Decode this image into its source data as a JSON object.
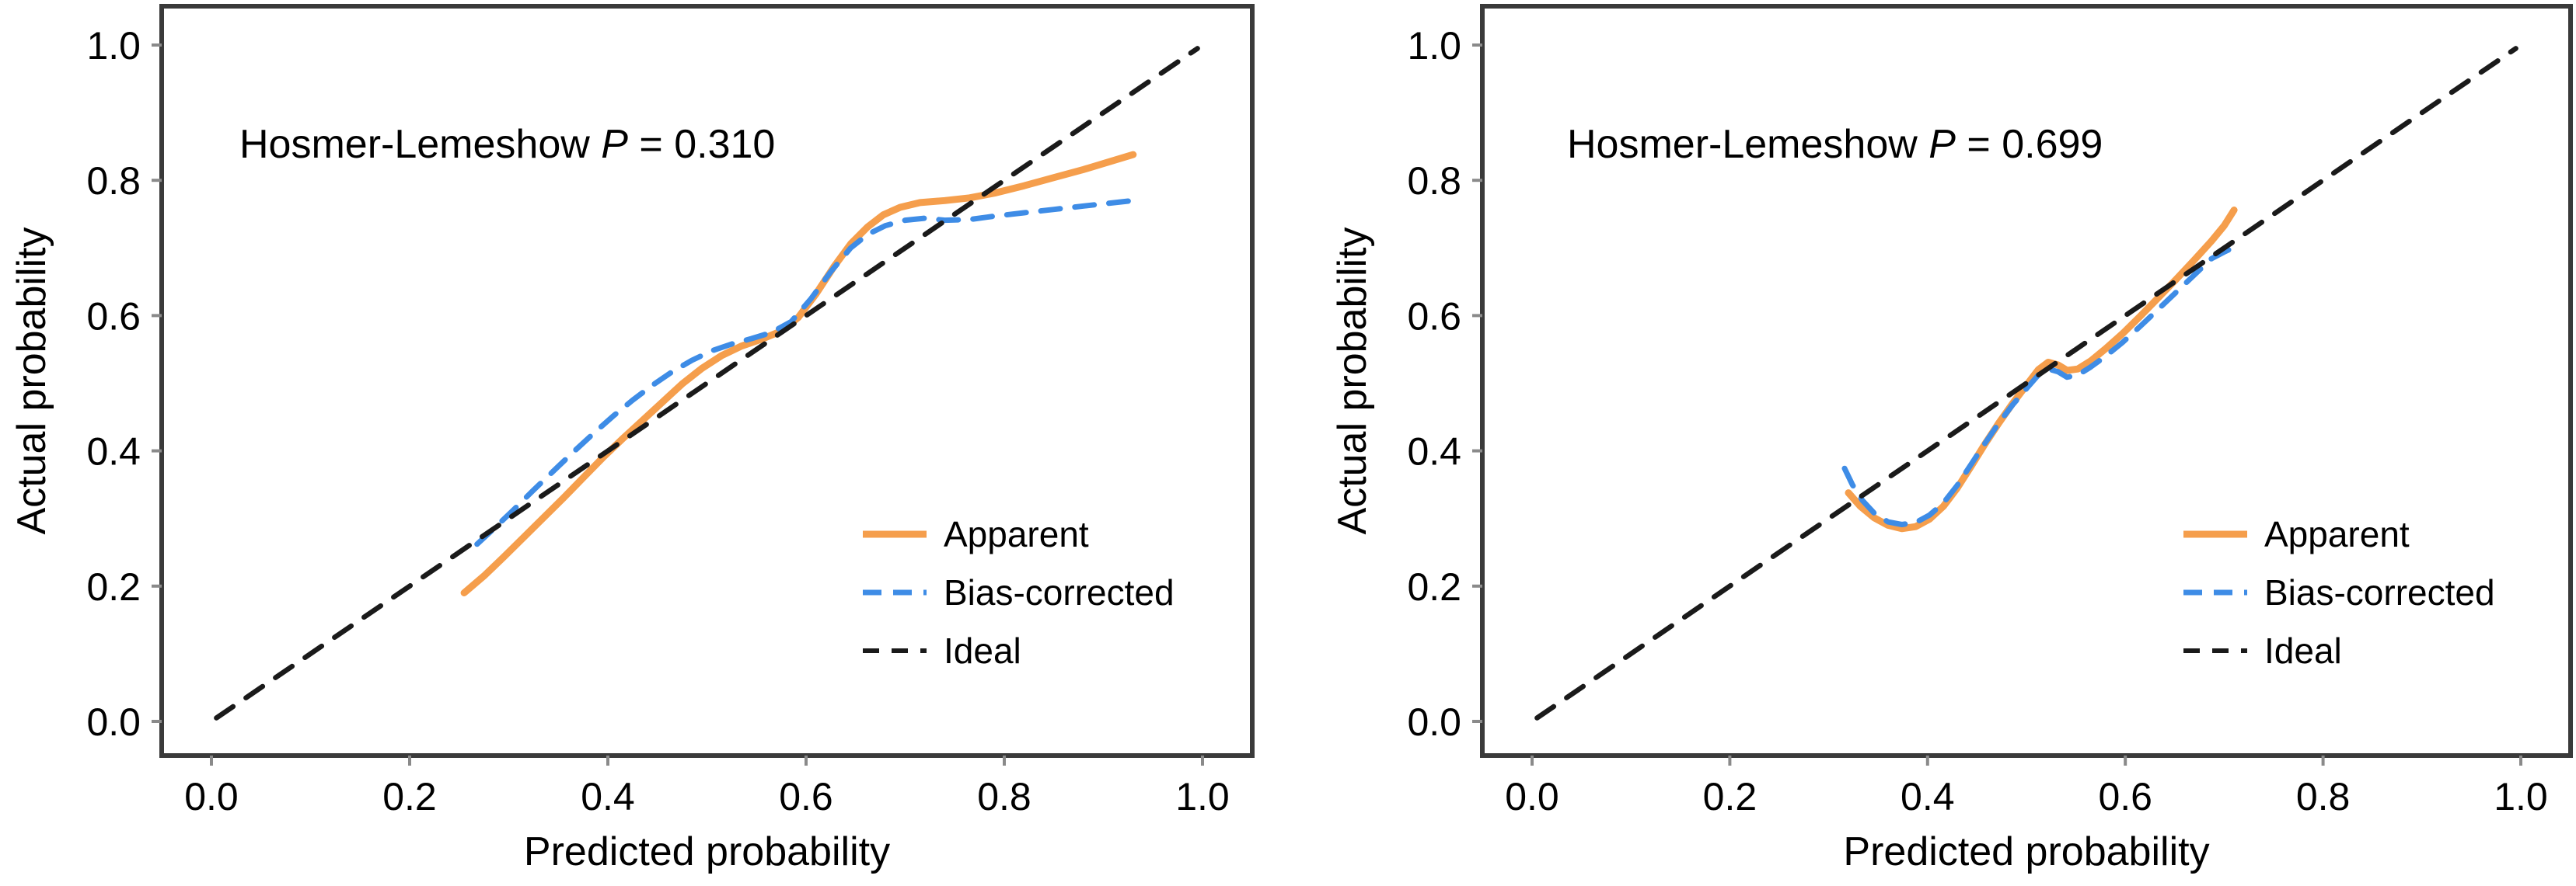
{
  "colors": {
    "apparent": "#F59E4C",
    "bias_corrected": "#3E8CE6",
    "ideal": "#1A1A1A",
    "spine": "#3A3A3A",
    "tick": "#8A8A8A",
    "text": "#000000",
    "background": "#FFFFFF"
  },
  "chart_data": [
    {
      "type": "line",
      "name": "calibration-panel-left",
      "annotation": {
        "before": "Hosmer-Lemeshow ",
        "italic": "P",
        "after": " = 0.310"
      },
      "xlabel": "Predicted probability",
      "ylabel": "Actual probability",
      "xlim": [
        -0.05,
        1.05
      ],
      "ylim": [
        -0.05,
        1.06
      ],
      "xticks": [
        "0.0",
        "0.2",
        "0.4",
        "0.6",
        "0.8",
        "1.0"
      ],
      "yticks": [
        "0.0",
        "0.2",
        "0.4",
        "0.6",
        "0.8",
        "1.0"
      ],
      "legend_position": "lower right",
      "series": [
        {
          "name": "Apparent",
          "line_style": "solid",
          "color_key": "apparent",
          "points": [
            [
              0.255,
              0.19
            ],
            [
              0.275,
              0.215
            ],
            [
              0.295,
              0.243
            ],
            [
              0.315,
              0.272
            ],
            [
              0.335,
              0.301
            ],
            [
              0.355,
              0.33
            ],
            [
              0.375,
              0.36
            ],
            [
              0.395,
              0.39
            ],
            [
              0.415,
              0.418
            ],
            [
              0.435,
              0.445
            ],
            [
              0.455,
              0.472
            ],
            [
              0.475,
              0.499
            ],
            [
              0.495,
              0.522
            ],
            [
              0.515,
              0.541
            ],
            [
              0.535,
              0.555
            ],
            [
              0.555,
              0.565
            ],
            [
              0.575,
              0.577
            ],
            [
              0.592,
              0.597
            ],
            [
              0.61,
              0.632
            ],
            [
              0.628,
              0.672
            ],
            [
              0.645,
              0.706
            ],
            [
              0.662,
              0.731
            ],
            [
              0.678,
              0.749
            ],
            [
              0.695,
              0.76
            ],
            [
              0.715,
              0.767
            ],
            [
              0.74,
              0.77
            ],
            [
              0.765,
              0.774
            ],
            [
              0.79,
              0.781
            ],
            [
              0.82,
              0.792
            ],
            [
              0.85,
              0.804
            ],
            [
              0.88,
              0.816
            ],
            [
              0.905,
              0.827
            ],
            [
              0.93,
              0.838
            ]
          ]
        },
        {
          "name": "Bias-corrected",
          "line_style": "dashed",
          "color_key": "bias_corrected",
          "points": [
            [
              0.268,
              0.262
            ],
            [
              0.285,
              0.285
            ],
            [
              0.305,
              0.313
            ],
            [
              0.325,
              0.342
            ],
            [
              0.345,
              0.37
            ],
            [
              0.365,
              0.398
            ],
            [
              0.385,
              0.425
            ],
            [
              0.405,
              0.451
            ],
            [
              0.425,
              0.475
            ],
            [
              0.445,
              0.497
            ],
            [
              0.465,
              0.517
            ],
            [
              0.485,
              0.534
            ],
            [
              0.505,
              0.548
            ],
            [
              0.525,
              0.558
            ],
            [
              0.545,
              0.566
            ],
            [
              0.565,
              0.575
            ],
            [
              0.585,
              0.591
            ],
            [
              0.605,
              0.625
            ],
            [
              0.625,
              0.665
            ],
            [
              0.645,
              0.7
            ],
            [
              0.662,
              0.72
            ],
            [
              0.68,
              0.733
            ],
            [
              0.7,
              0.741
            ],
            [
              0.72,
              0.744
            ],
            [
              0.74,
              0.741
            ],
            [
              0.765,
              0.742
            ],
            [
              0.79,
              0.747
            ],
            [
              0.82,
              0.752
            ],
            [
              0.85,
              0.757
            ],
            [
              0.88,
              0.762
            ],
            [
              0.905,
              0.766
            ],
            [
              0.93,
              0.77
            ]
          ]
        },
        {
          "name": "Ideal",
          "line_style": "dashed",
          "color_key": "ideal",
          "points": [
            [
              0.005,
              0.005
            ],
            [
              0.995,
              0.995
            ]
          ]
        }
      ]
    },
    {
      "type": "line",
      "name": "calibration-panel-right",
      "annotation": {
        "before": "Hosmer-Lemeshow ",
        "italic": "P",
        "after": " = 0.699"
      },
      "xlabel": "Predicted probability",
      "ylabel": "Actual probability",
      "xlim": [
        -0.05,
        1.05
      ],
      "ylim": [
        -0.05,
        1.06
      ],
      "xticks": [
        "0.0",
        "0.2",
        "0.4",
        "0.6",
        "0.8",
        "1.0"
      ],
      "yticks": [
        "0.0",
        "0.2",
        "0.4",
        "0.6",
        "0.8",
        "1.0"
      ],
      "legend_position": "lower right",
      "series": [
        {
          "name": "Apparent",
          "line_style": "solid",
          "color_key": "apparent",
          "points": [
            [
              0.32,
              0.338
            ],
            [
              0.332,
              0.318
            ],
            [
              0.346,
              0.301
            ],
            [
              0.36,
              0.29
            ],
            [
              0.374,
              0.285
            ],
            [
              0.388,
              0.288
            ],
            [
              0.402,
              0.299
            ],
            [
              0.416,
              0.318
            ],
            [
              0.43,
              0.345
            ],
            [
              0.444,
              0.377
            ],
            [
              0.458,
              0.41
            ],
            [
              0.472,
              0.441
            ],
            [
              0.486,
              0.47
            ],
            [
              0.5,
              0.497
            ],
            [
              0.512,
              0.52
            ],
            [
              0.522,
              0.531
            ],
            [
              0.532,
              0.527
            ],
            [
              0.541,
              0.519
            ],
            [
              0.552,
              0.521
            ],
            [
              0.565,
              0.533
            ],
            [
              0.58,
              0.551
            ],
            [
              0.597,
              0.573
            ],
            [
              0.615,
              0.599
            ],
            [
              0.633,
              0.626
            ],
            [
              0.651,
              0.653
            ],
            [
              0.669,
              0.681
            ],
            [
              0.687,
              0.71
            ],
            [
              0.7,
              0.733
            ],
            [
              0.71,
              0.756
            ]
          ]
        },
        {
          "name": "Bias-corrected",
          "line_style": "dashed",
          "color_key": "bias_corrected",
          "points": [
            [
              0.316,
              0.374
            ],
            [
              0.324,
              0.35
            ],
            [
              0.334,
              0.327
            ],
            [
              0.346,
              0.308
            ],
            [
              0.36,
              0.295
            ],
            [
              0.374,
              0.291
            ],
            [
              0.388,
              0.294
            ],
            [
              0.402,
              0.305
            ],
            [
              0.416,
              0.323
            ],
            [
              0.43,
              0.349
            ],
            [
              0.444,
              0.38
            ],
            [
              0.458,
              0.411
            ],
            [
              0.472,
              0.441
            ],
            [
              0.486,
              0.468
            ],
            [
              0.5,
              0.492
            ],
            [
              0.512,
              0.512
            ],
            [
              0.522,
              0.521
            ],
            [
              0.532,
              0.517
            ],
            [
              0.541,
              0.509
            ],
            [
              0.552,
              0.512
            ],
            [
              0.565,
              0.524
            ],
            [
              0.58,
              0.54
            ],
            [
              0.597,
              0.56
            ],
            [
              0.615,
              0.584
            ],
            [
              0.633,
              0.609
            ],
            [
              0.651,
              0.634
            ],
            [
              0.669,
              0.659
            ],
            [
              0.687,
              0.684
            ],
            [
              0.7,
              0.694
            ],
            [
              0.71,
              0.701
            ]
          ]
        },
        {
          "name": "Ideal",
          "line_style": "dashed",
          "color_key": "ideal",
          "points": [
            [
              0.005,
              0.005
            ],
            [
              0.995,
              0.995
            ]
          ]
        }
      ]
    }
  ],
  "legend_labels": [
    "Apparent",
    "Bias-corrected",
    "Ideal"
  ]
}
